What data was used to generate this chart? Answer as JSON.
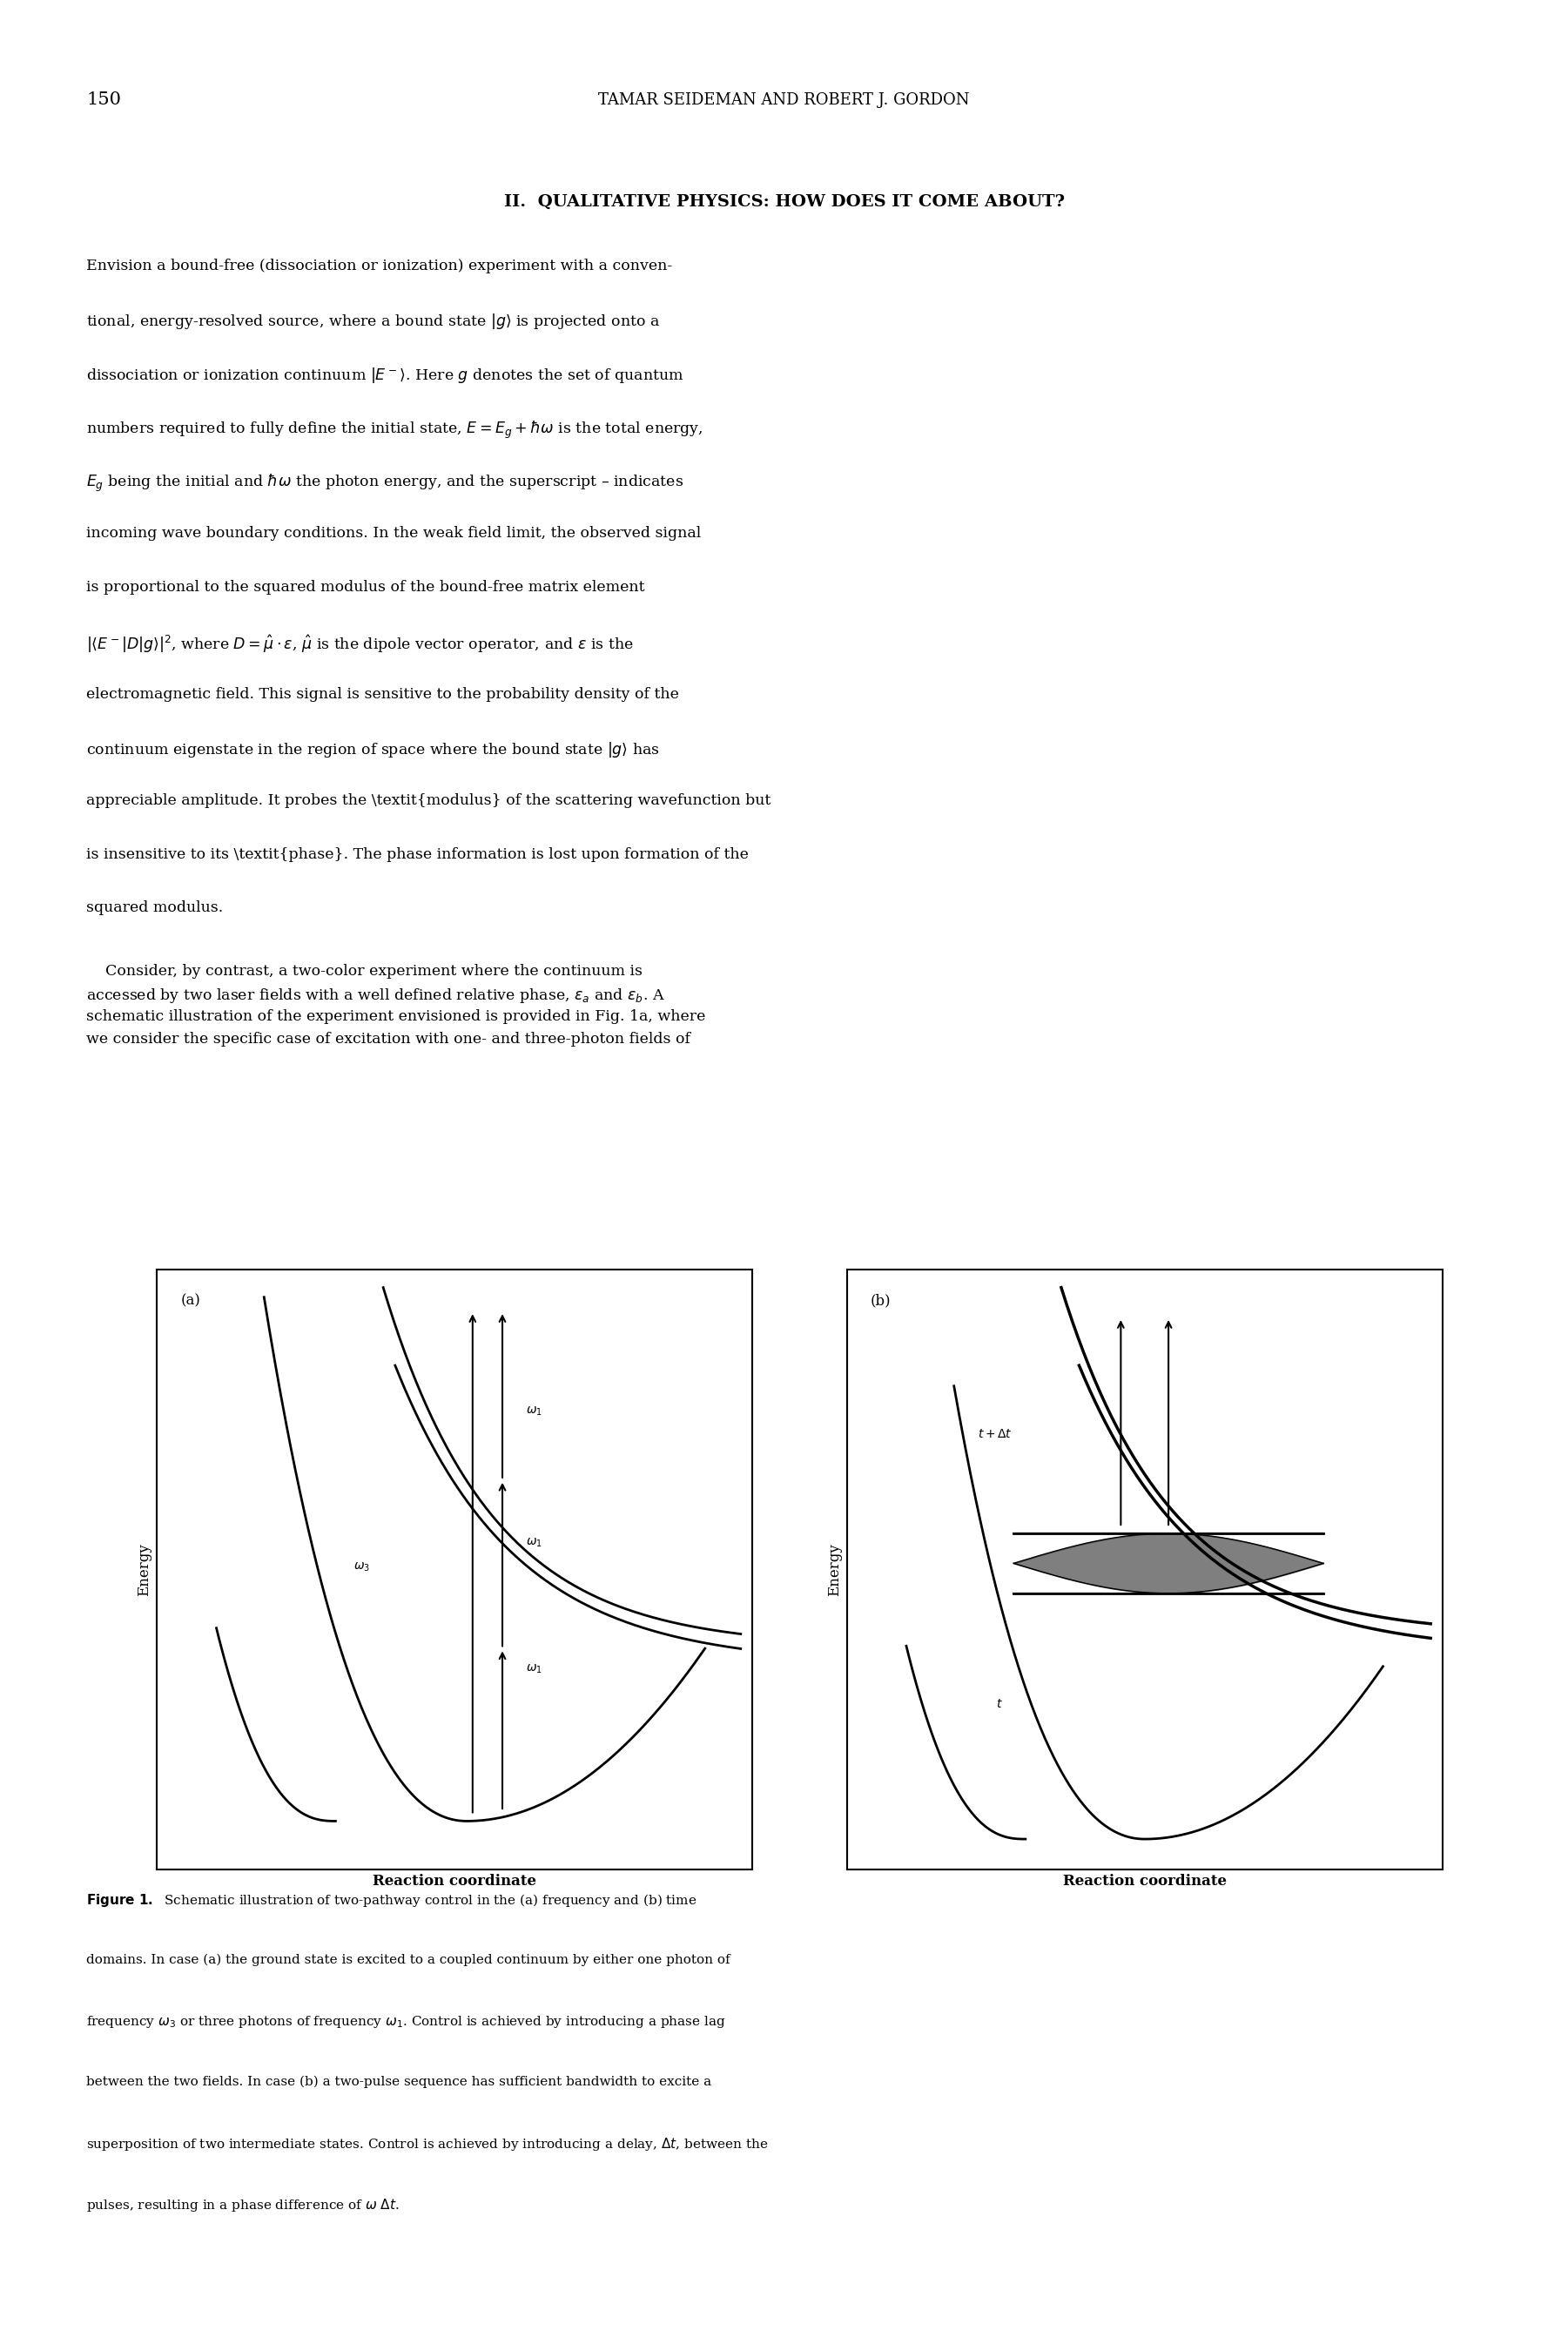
{
  "page_number": "150",
  "header": "TAMAR SEIDEMAN AND ROBERT J. GORDON",
  "section_title": "II.  QUALITATIVE PHYSICS: HOW DOES IT COME ABOUT?",
  "fig_label_a": "(a)",
  "fig_label_b": "(b)",
  "ylabel_a": "Energy",
  "ylabel_b": "Energy",
  "xlabel_a": "Reaction coordinate",
  "xlabel_b": "Reaction coordinate",
  "bg_color": "#ffffff",
  "text_color": "#000000"
}
